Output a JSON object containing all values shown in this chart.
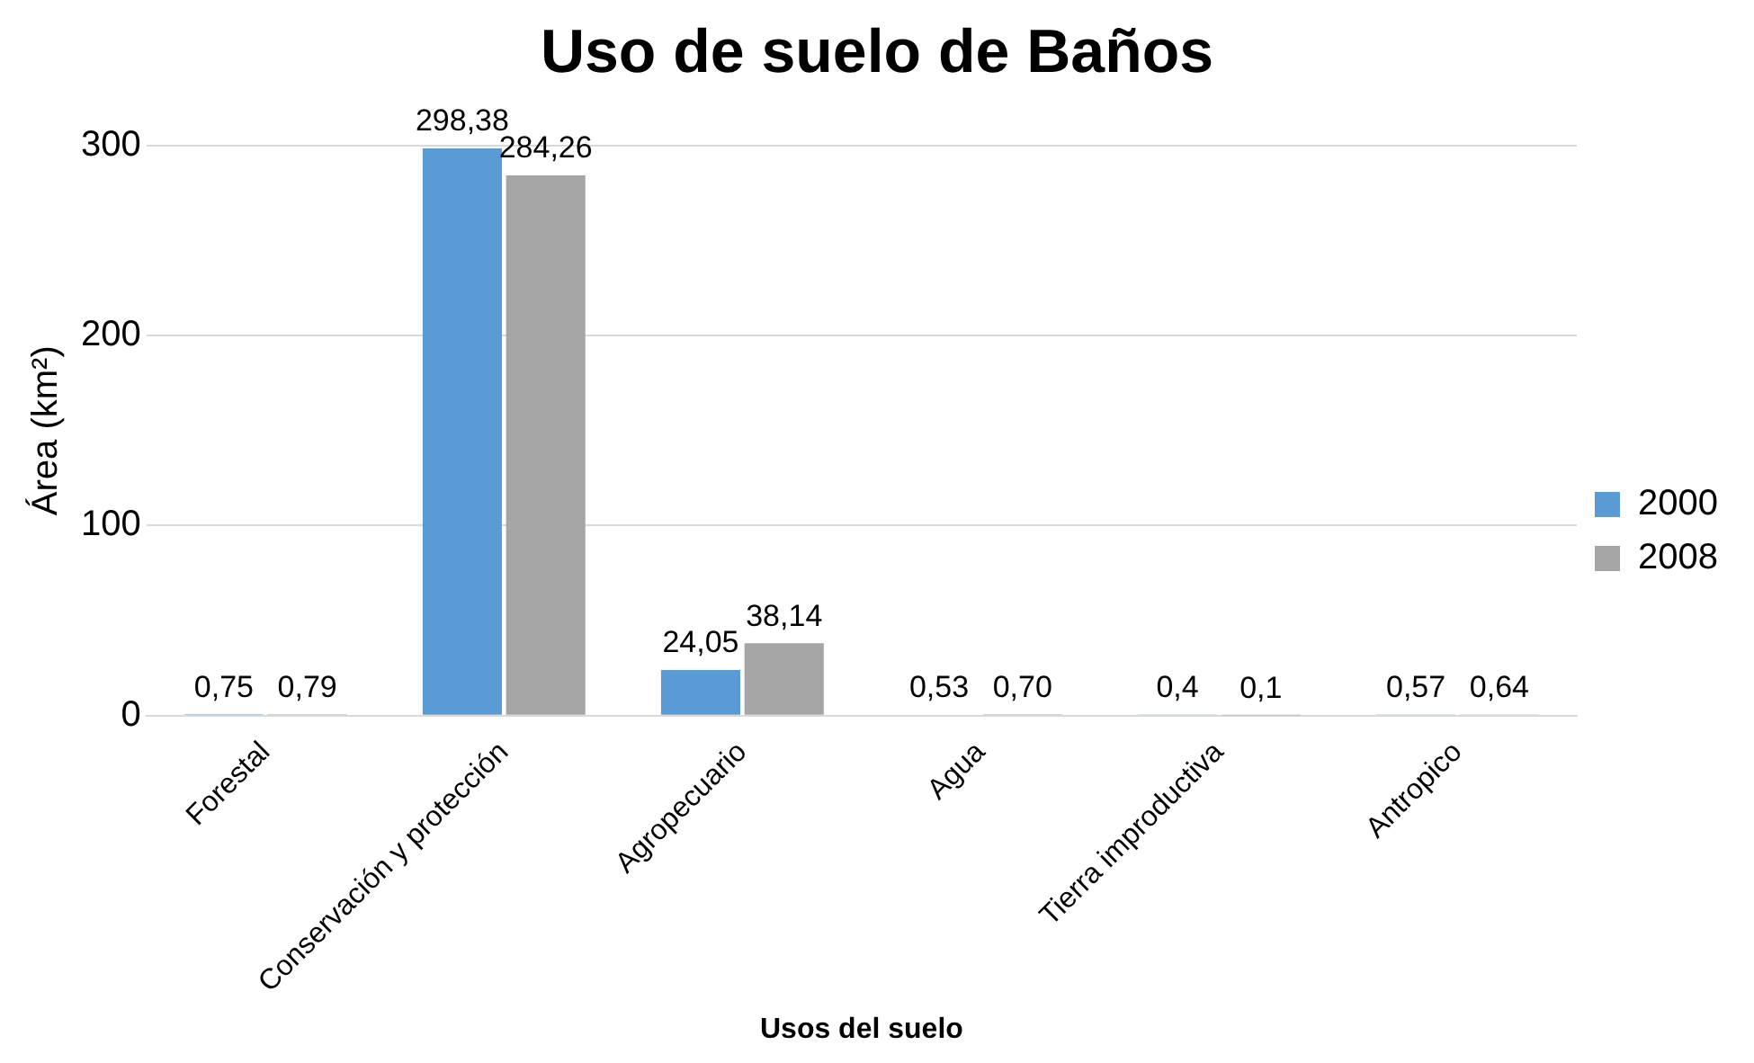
{
  "chart_data": {
    "type": "bar",
    "title": "Uso de suelo de Baños",
    "xlabel": "Usos del suelo",
    "ylabel": "Área (km²)",
    "categories": [
      "Forestal",
      "Conservación y protección",
      "Agropecuario",
      "Agua",
      "Tierra improductiva",
      "Antropico"
    ],
    "series": [
      {
        "name": "2000",
        "color": "#5b9bd5",
        "values": [
          0.75,
          298.38,
          24.05,
          0.53,
          0.4,
          0.57
        ],
        "value_labels": [
          "0,75",
          "298,38",
          "24,05",
          "0,53",
          "0,4",
          "0,57"
        ]
      },
      {
        "name": "2008",
        "color": "#a5a5a5",
        "values": [
          0.79,
          284.26,
          38.14,
          0.7,
          0.1,
          0.64
        ],
        "value_labels": [
          "0,79",
          "284,26",
          "38,14",
          "0,70",
          "0,1",
          "0,64"
        ]
      }
    ],
    "ylim": [
      0,
      300
    ],
    "yticks": [
      0,
      100,
      200,
      300
    ],
    "grid": "y",
    "legend": "right"
  }
}
